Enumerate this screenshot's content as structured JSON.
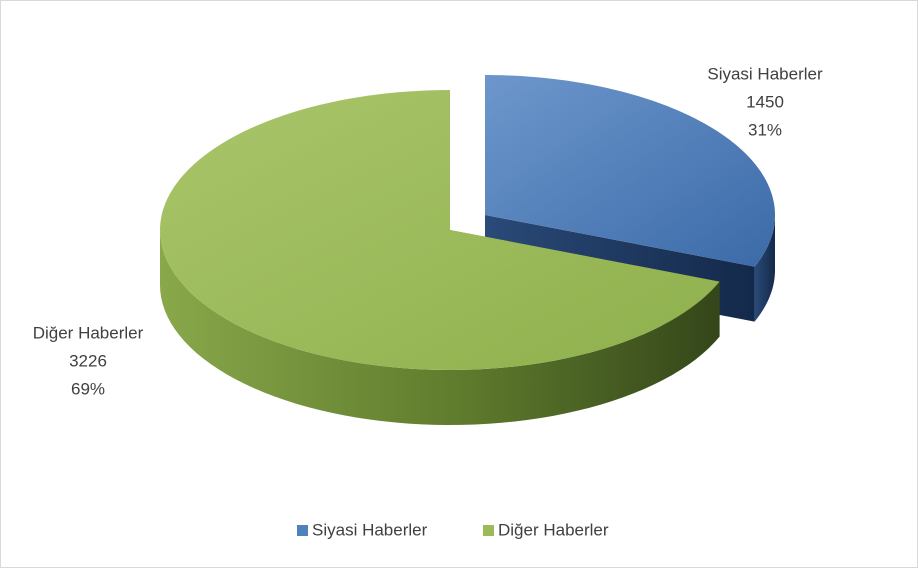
{
  "chart_data": {
    "type": "pie3d",
    "categories": [
      "Siyasi Haberler",
      "Diğer Haberler"
    ],
    "values": [
      1450,
      3226
    ],
    "percent_labels": [
      "31%",
      "69%"
    ],
    "colors": [
      "#4f81bd",
      "#9bbb59"
    ],
    "legend": "bottom"
  }
}
